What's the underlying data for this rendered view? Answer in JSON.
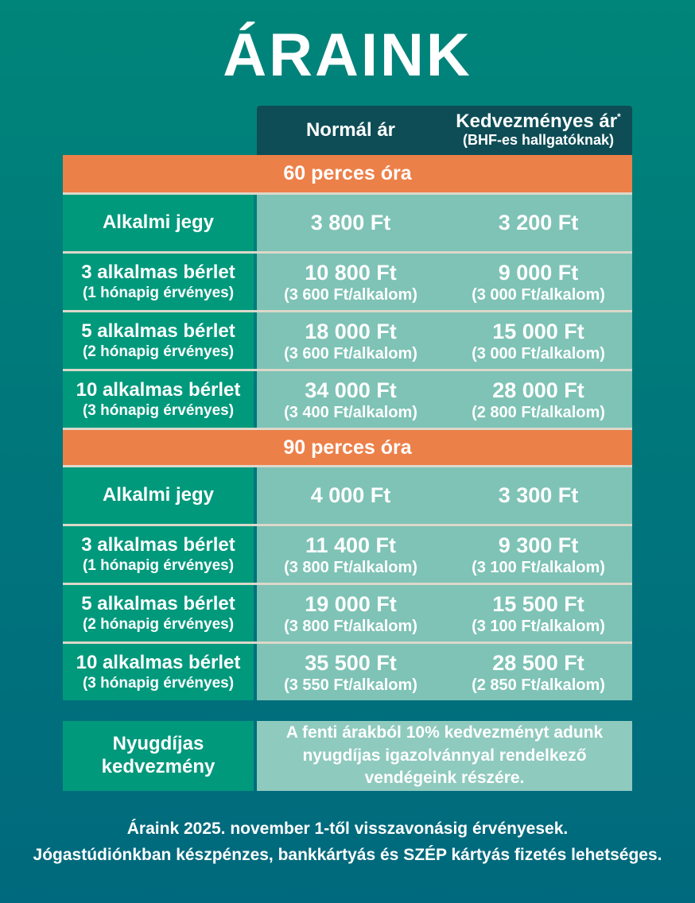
{
  "title": "ÁRAINK",
  "table": {
    "columns": {
      "normal": "Normál ár",
      "discount": "Kedvezményes ár",
      "discount_asterisk": "*",
      "discount_sub": "(BHF-es hallgatóknak)"
    },
    "sections": [
      {
        "header": "60 perces óra",
        "rows": [
          {
            "label": "Alkalmi jegy",
            "normal": "3 800 Ft",
            "discount": "3 200 Ft"
          },
          {
            "label": "3 alkalmas bérlet",
            "label_sub": "(1 hónapig érvényes)",
            "normal": "10 800 Ft",
            "normal_sub": "(3 600 Ft/alkalom)",
            "discount": "9 000 Ft",
            "discount_sub": "(3 000 Ft/alkalom)"
          },
          {
            "label": "5 alkalmas bérlet",
            "label_sub": "(2 hónapig érvényes)",
            "normal": "18 000 Ft",
            "normal_sub": "(3 600 Ft/alkalom)",
            "discount": "15 000 Ft",
            "discount_sub": "(3 000 Ft/alkalom)"
          },
          {
            "label": "10 alkalmas bérlet",
            "label_sub": "(3 hónapig érvényes)",
            "normal": "34 000 Ft",
            "normal_sub": "(3 400 Ft/alkalom)",
            "discount": "28 000 Ft",
            "discount_sub": "(2 800 Ft/alkalom)"
          }
        ]
      },
      {
        "header": "90 perces óra",
        "rows": [
          {
            "label": "Alkalmi jegy",
            "normal": "4 000 Ft",
            "discount": "3 300 Ft"
          },
          {
            "label": "3 alkalmas bérlet",
            "label_sub": "(1 hónapig érvényes)",
            "normal": "11 400 Ft",
            "normal_sub": "(3 800 Ft/alkalom)",
            "discount": "9 300 Ft",
            "discount_sub": "(3 100 Ft/alkalom)"
          },
          {
            "label": "5 alkalmas bérlet",
            "label_sub": "(2 hónapig érvényes)",
            "normal": "19 000 Ft",
            "normal_sub": "(3 800 Ft/alkalom)",
            "discount": "15 500 Ft",
            "discount_sub": "(3 100 Ft/alkalom)"
          },
          {
            "label": "10 alkalmas bérlet",
            "label_sub": "(3 hónapig érvényes)",
            "normal": "35 500 Ft",
            "normal_sub": "(3 550 Ft/alkalom)",
            "discount": "28 500 Ft",
            "discount_sub": "(2 850 Ft/alkalom)"
          }
        ]
      }
    ]
  },
  "pensioner": {
    "label_line1": "Nyugdíjas",
    "label_line2": "kedvezmény",
    "description": "A fenti árakból 10% kedvezményt adunk nyugdíjas igazolvánnyal rendelkező vendégeink részére."
  },
  "footer": {
    "line1": "Áraink 2025. november 1-től visszavonásig érvényesek.",
    "line2": "Jógastúdiónkban készpénzes, bankkártyás és SZÉP kártyás fizetés lehetséges."
  },
  "colors": {
    "background_top": "#00857A",
    "background_bottom": "#00697D",
    "header_dark": "#0E4D56",
    "section_orange": "#EC8049",
    "label_green": "#00997C",
    "cell_teal": "#7EC3B6",
    "cell_teal_light": "#8FCABE",
    "divider": "#DCD8CA",
    "text": "#FFFFFF"
  }
}
